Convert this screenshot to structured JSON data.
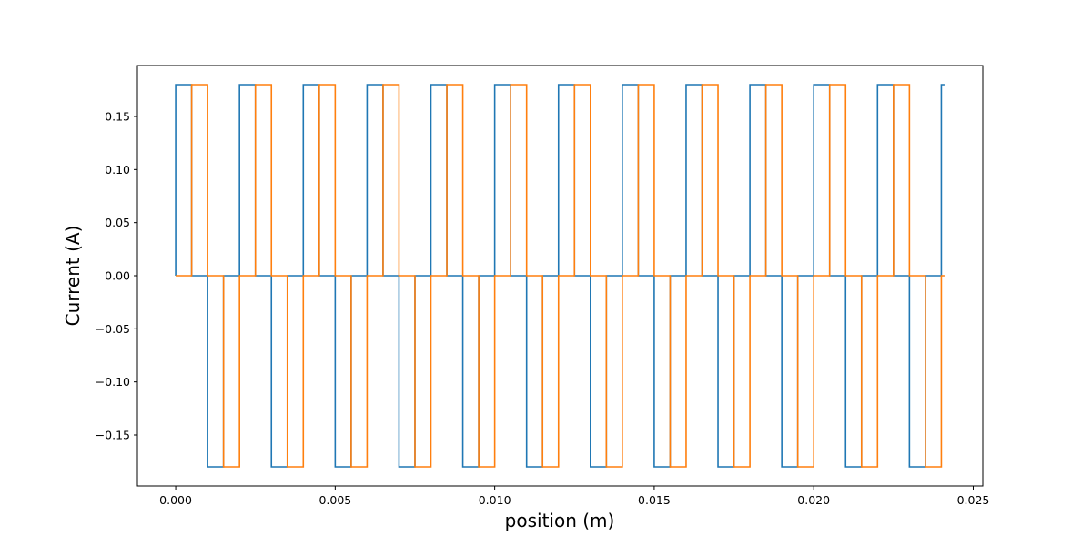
{
  "chart_data": {
    "type": "line",
    "step": "post",
    "xlabel": "position (m)",
    "ylabel": "Current (A)",
    "xlim": [
      -0.0012,
      0.0253
    ],
    "ylim": [
      -0.198,
      0.198
    ],
    "x_ticks": [
      0.0,
      0.005,
      0.01,
      0.015,
      0.02,
      0.025
    ],
    "x_tick_labels": [
      "0.000",
      "0.005",
      "0.010",
      "0.015",
      "0.020",
      "0.025"
    ],
    "y_ticks": [
      -0.15,
      -0.1,
      -0.05,
      0.0,
      0.05,
      0.1,
      0.15
    ],
    "y_tick_labels": [
      "−0.15",
      "−0.10",
      "−0.05",
      "0.00",
      "0.05",
      "0.10",
      "0.15"
    ],
    "grid": false,
    "amplitude": 0.18,
    "period": 0.002,
    "x_end": 0.0241,
    "series": [
      {
        "color": "#1f77b4",
        "pattern": [
          [
            0.0,
            0.18
          ],
          [
            0.0005,
            0.0
          ],
          [
            0.001,
            -0.18
          ],
          [
            0.0015,
            0.0
          ]
        ],
        "start": [
          0.0,
          0.0
        ]
      },
      {
        "color": "#ff7f0e",
        "pattern": [
          [
            0.0005,
            0.18
          ],
          [
            0.001,
            0.0
          ],
          [
            0.0015,
            -0.18
          ],
          [
            0.002,
            0.0
          ]
        ],
        "start": [
          0.0,
          0.0
        ]
      }
    ]
  }
}
